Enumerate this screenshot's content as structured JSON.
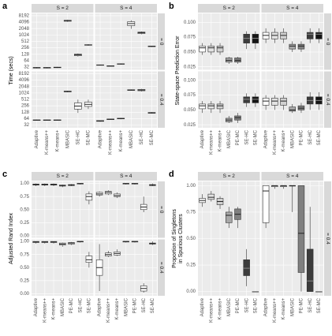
{
  "chart_data": [
    {
      "type": "box",
      "label": "a",
      "ylabel": [
        "Time (secs)"
      ],
      "log_scale": true,
      "ylim": [
        24,
        10500
      ],
      "yticks": [
        32,
        64,
        128,
        256,
        512,
        1024,
        2048,
        4096,
        8192
      ],
      "columns": [
        "S = 2",
        "S = 4"
      ],
      "rows": [
        "= 0",
        "= 0.4"
      ],
      "categories": [
        "Adaptive",
        "K-means++",
        "K-means+",
        "MBASIC",
        "SE-HC",
        "SE-MC"
      ],
      "box_colors": [
        "#ffffff",
        "#ffffff",
        "#ffffff",
        "#ffffff",
        "#ffffff",
        "#ffffff"
      ],
      "facets": [
        [
          [
            [
              28,
              29,
              30,
              31,
              32
            ],
            [
              28,
              29,
              30,
              31,
              32
            ],
            [
              29,
              30,
              31,
              32,
              33
            ],
            [
              4200,
              4500,
              4800,
              5000,
              5300
            ],
            [
              100,
              110,
              120,
              130,
              140
            ],
            [
              320,
              340,
              350,
              360,
              380
            ]
          ],
          [
            [
              38,
              39,
              40,
              41,
              42
            ],
            [
              34,
              35,
              36,
              37,
              38
            ],
            [
              42,
              44,
              45,
              46,
              48
            ],
            [
              2000,
              2800,
              3500,
              4300,
              5000
            ],
            [
              1100,
              1200,
              1300,
              1400,
              1500
            ],
            [
              280,
              290,
              300,
              310,
              320
            ]
          ]
        ],
        [
          [
            [
              52,
              54,
              55,
              56,
              58
            ],
            [
              52,
              54,
              55,
              56,
              58
            ],
            [
              52,
              54,
              55,
              56,
              58
            ],
            [
              1100,
              1150,
              1200,
              1250,
              1300
            ],
            [
              120,
              180,
              250,
              350,
              500
            ],
            [
              180,
              240,
              300,
              380,
              500
            ]
          ],
          [
            [
              46,
              48,
              50,
              52,
              54
            ],
            [
              56,
              58,
              60,
              62,
              64
            ],
            [
              60,
              63,
              65,
              67,
              70
            ],
            [
              1300,
              1350,
              1400,
              1450,
              1500
            ],
            [
              1200,
              1300,
              1400,
              1500,
              1600
            ],
            [
              110,
              115,
              120,
              125,
              130
            ]
          ]
        ]
      ]
    },
    {
      "type": "box",
      "label": "b",
      "ylabel": [
        "State-space Prediction Error"
      ],
      "ylim": [
        0.02,
        0.115
      ],
      "yticks": [
        {
          "value": 0.025,
          "label": "0.025"
        },
        {
          "value": 0.05,
          "label": "0.050"
        },
        {
          "value": 0.075,
          "label": "0.075"
        },
        {
          "value": 0.1,
          "label": "0.100"
        }
      ],
      "columns": [
        "S = 2",
        "S = 4"
      ],
      "rows": [
        "= 0",
        "= 0.4"
      ],
      "categories": [
        "Adaptive",
        "K-means++",
        "K-means+",
        "MBASIC",
        "PE-MC",
        "SE-HC",
        "SE-MC"
      ],
      "box_colors": [
        "#ffffff",
        "#e3e3e3",
        "#d0d0d0",
        "#a8a8a8",
        "#808080",
        "#3c3c3c",
        "#141414"
      ],
      "facets": [
        [
          [
            [
              0.045,
              0.05,
              0.057,
              0.06,
              0.065
            ],
            [
              0.045,
              0.05,
              0.057,
              0.06,
              0.065
            ],
            [
              0.045,
              0.05,
              0.057,
              0.06,
              0.065
            ],
            [
              0.03,
              0.033,
              0.036,
              0.04,
              0.042
            ],
            [
              0.03,
              0.033,
              0.036,
              0.04,
              0.042
            ],
            [
              0.055,
              0.065,
              0.073,
              0.08,
              0.085
            ],
            [
              0.055,
              0.065,
              0.073,
              0.08,
              0.085
            ]
          ],
          [
            [
              0.065,
              0.072,
              0.078,
              0.083,
              0.09
            ],
            [
              0.065,
              0.072,
              0.078,
              0.083,
              0.09
            ],
            [
              0.065,
              0.072,
              0.078,
              0.083,
              0.09
            ],
            [
              0.05,
              0.055,
              0.06,
              0.063,
              0.068
            ],
            [
              0.05,
              0.055,
              0.06,
              0.063,
              0.068
            ],
            [
              0.065,
              0.072,
              0.08,
              0.083,
              0.09
            ],
            [
              0.065,
              0.072,
              0.08,
              0.083,
              0.09
            ]
          ]
        ],
        [
          [
            [
              0.045,
              0.052,
              0.057,
              0.06,
              0.065
            ],
            [
              0.045,
              0.052,
              0.057,
              0.06,
              0.065
            ],
            [
              0.045,
              0.052,
              0.057,
              0.06,
              0.065
            ],
            [
              0.028,
              0.03,
              0.033,
              0.036,
              0.04
            ],
            [
              0.028,
              0.033,
              0.037,
              0.04,
              0.045
            ],
            [
              0.055,
              0.062,
              0.068,
              0.072,
              0.078
            ],
            [
              0.055,
              0.062,
              0.068,
              0.072,
              0.078
            ]
          ],
          [
            [
              0.05,
              0.058,
              0.065,
              0.07,
              0.075
            ],
            [
              0.05,
              0.058,
              0.065,
              0.07,
              0.075
            ],
            [
              0.05,
              0.058,
              0.065,
              0.07,
              0.075
            ],
            [
              0.045,
              0.048,
              0.05,
              0.055,
              0.06
            ],
            [
              0.045,
              0.05,
              0.053,
              0.057,
              0.062
            ],
            [
              0.05,
              0.06,
              0.066,
              0.072,
              0.08
            ],
            [
              0.05,
              0.06,
              0.066,
              0.072,
              0.08
            ]
          ]
        ]
      ]
    },
    {
      "type": "box",
      "label": "c",
      "ylabel": [
        "Adjusted Rand Index"
      ],
      "ylim": [
        -0.04,
        1.04
      ],
      "yticks": [
        {
          "value": 0,
          "label": "0.00"
        },
        {
          "value": 0.25,
          "label": "0.25"
        },
        {
          "value": 0.5,
          "label": "0.50"
        },
        {
          "value": 0.75,
          "label": "0.75"
        },
        {
          "value": 1,
          "label": "1.00"
        }
      ],
      "columns": [
        "S = 2",
        "S = 4"
      ],
      "rows": [
        "= 0",
        "= 0.4"
      ],
      "categories": [
        "Adaptive",
        "K-means++",
        "K-means+",
        "MBASIC",
        "PE-MC",
        "SE-HC",
        "SE-MC"
      ],
      "box_colors": [
        "#ffffff",
        "#ffffff",
        "#ffffff",
        "#ffffff",
        "#ffffff",
        "#ffffff",
        "#ffffff"
      ],
      "facets": [
        [
          [
            [
              0.95,
              0.97,
              0.98,
              0.99,
              1
            ],
            [
              0.95,
              0.97,
              0.98,
              0.99,
              1
            ],
            [
              0.95,
              0.97,
              0.98,
              0.99,
              1
            ],
            [
              0.93,
              0.95,
              0.96,
              0.97,
              0.98
            ],
            [
              0.95,
              0.96,
              0.97,
              0.98,
              0.99
            ],
            [
              0.98,
              0.99,
              1,
              1,
              1
            ],
            [
              0.6,
              0.68,
              0.75,
              0.8,
              0.85
            ]
          ],
          [
            [
              0.75,
              0.78,
              0.8,
              0.83,
              0.85
            ],
            [
              0.78,
              0.8,
              0.83,
              0.85,
              0.87
            ],
            [
              0.72,
              0.75,
              0.77,
              0.8,
              0.83
            ],
            [
              0.98,
              0.99,
              1,
              1,
              1
            ],
            [
              0.98,
              0.99,
              1,
              1,
              1
            ],
            [
              0.45,
              0.5,
              0.55,
              0.6,
              0.75
            ],
            [
              0.95,
              0.96,
              0.97,
              0.98,
              1
            ]
          ]
        ],
        [
          [
            [
              0.96,
              0.98,
              0.99,
              1,
              1
            ],
            [
              0.96,
              0.98,
              0.99,
              1,
              1
            ],
            [
              0.96,
              0.98,
              0.99,
              1,
              1
            ],
            [
              0.9,
              0.93,
              0.95,
              0.97,
              0.98
            ],
            [
              0.93,
              0.95,
              0.97,
              0.98,
              0.99
            ],
            [
              0.98,
              1,
              1,
              1,
              1
            ],
            [
              0.5,
              0.6,
              0.65,
              0.72,
              0.8
            ]
          ],
          [
            [
              0.05,
              0.35,
              0.5,
              0.65,
              0.95
            ],
            [
              0.7,
              0.72,
              0.75,
              0.78,
              0.82
            ],
            [
              0.72,
              0.74,
              0.77,
              0.8,
              0.85
            ],
            [
              0.98,
              0.99,
              1,
              1,
              1
            ],
            [
              0.98,
              0.99,
              1,
              1,
              1
            ],
            [
              0.02,
              0.05,
              0.1,
              0.15,
              0.2
            ],
            [
              0.93,
              0.95,
              0.96,
              0.97,
              1
            ]
          ]
        ]
      ]
    },
    {
      "type": "box",
      "label": "d",
      "ylabel": [
        "Proportion of Singletons",
        "in Spurious Clusters"
      ],
      "ylim": [
        -0.04,
        1.04
      ],
      "yticks": [
        {
          "value": 0,
          "label": "0.00"
        },
        {
          "value": 0.25,
          "label": "0.25"
        },
        {
          "value": 0.5,
          "label": "0.50"
        },
        {
          "value": 0.75,
          "label": "0.75"
        },
        {
          "value": 1,
          "label": "1.00"
        }
      ],
      "columns": [
        "S = 2",
        "S = 4"
      ],
      "rows": [
        "= 0.4"
      ],
      "categories": [
        "Adaptive",
        "K-means++",
        "K-means+",
        "MBASIC",
        "PE-MC",
        "SE-HC",
        "SE-MC"
      ],
      "box_colors": [
        "#ffffff",
        "#e3e3e3",
        "#d0d0d0",
        "#a8a8a8",
        "#808080",
        "#3c3c3c",
        "#141414"
      ],
      "facets": [
        [
          [
            [
              0.8,
              0.84,
              0.86,
              0.88,
              0.92
            ],
            [
              0.85,
              0.87,
              0.89,
              0.92,
              0.95
            ],
            [
              0.78,
              0.82,
              0.85,
              0.88,
              0.9
            ],
            [
              0.6,
              0.65,
              0.72,
              0.75,
              0.8
            ],
            [
              0.6,
              0.68,
              0.73,
              0.78,
              0.8
            ],
            [
              0.05,
              0.15,
              0.22,
              0.3,
              0.4
            ],
            [
              0,
              0,
              0,
              0,
              0
            ]
          ],
          [
            [
              0.6,
              0.65,
              0.95,
              1,
              1
            ],
            [
              0.97,
              0.99,
              1,
              1,
              1
            ],
            [
              0.97,
              0.99,
              1,
              1,
              1
            ],
            [
              0.75,
              1,
              1,
              1,
              1
            ],
            [
              0,
              0.18,
              0.55,
              1,
              1
            ],
            [
              0,
              0,
              0.1,
              0.4,
              0.8
            ],
            [
              0,
              0,
              0,
              0,
              0
            ]
          ]
        ]
      ]
    }
  ]
}
